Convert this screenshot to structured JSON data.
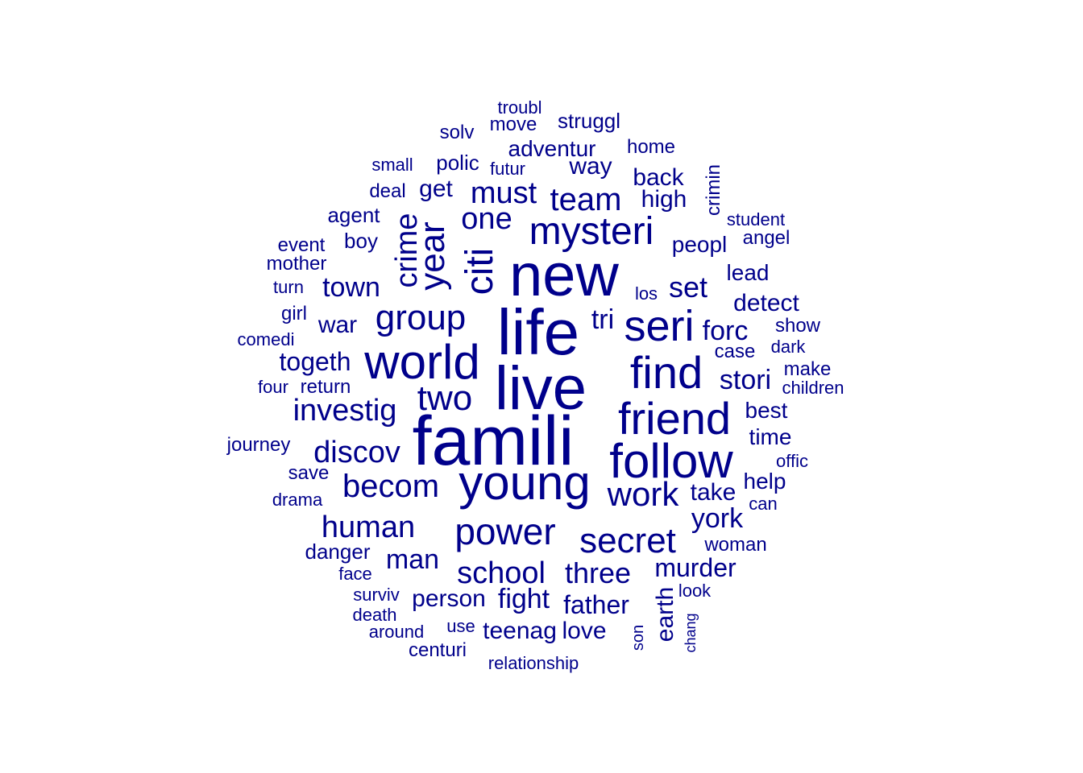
{
  "chart_data": {
    "type": "wordcloud",
    "color": "#00008B",
    "words": [
      {
        "text": "famili",
        "weight": 10
      },
      {
        "text": "new",
        "weight": 9.6
      },
      {
        "text": "live",
        "weight": 9.2
      },
      {
        "text": "life",
        "weight": 9.0
      },
      {
        "text": "young",
        "weight": 7.0
      },
      {
        "text": "follow",
        "weight": 7.0
      },
      {
        "text": "world",
        "weight": 6.8
      },
      {
        "text": "find",
        "weight": 6.4
      },
      {
        "text": "friend",
        "weight": 6.4
      },
      {
        "text": "seri",
        "weight": 6.2
      },
      {
        "text": "mysteri",
        "weight": 5.6
      },
      {
        "text": "citi",
        "weight": 5.6
      },
      {
        "text": "power",
        "weight": 5.4
      },
      {
        "text": "year",
        "weight": 5.2
      },
      {
        "text": "group",
        "weight": 5.2
      },
      {
        "text": "two",
        "weight": 5.2
      },
      {
        "text": "secret",
        "weight": 5.2
      },
      {
        "text": "crime",
        "weight": 4.8
      },
      {
        "text": "becom",
        "weight": 4.8
      },
      {
        "text": "work",
        "weight": 4.8
      },
      {
        "text": "school",
        "weight": 4.6
      },
      {
        "text": "team",
        "weight": 4.6
      },
      {
        "text": "human",
        "weight": 4.6
      },
      {
        "text": "one",
        "weight": 4.4
      },
      {
        "text": "must",
        "weight": 4.4
      },
      {
        "text": "investig",
        "weight": 4.4
      },
      {
        "text": "discov",
        "weight": 4.4
      },
      {
        "text": "set",
        "weight": 4.2
      },
      {
        "text": "three",
        "weight": 4.2
      },
      {
        "text": "town",
        "weight": 4.0
      },
      {
        "text": "man",
        "weight": 4.0
      },
      {
        "text": "fight",
        "weight": 4.0
      },
      {
        "text": "york",
        "weight": 4.0
      },
      {
        "text": "tri",
        "weight": 3.8
      },
      {
        "text": "forc",
        "weight": 3.8
      },
      {
        "text": "stori",
        "weight": 3.8
      },
      {
        "text": "father",
        "weight": 3.8
      },
      {
        "text": "togeth",
        "weight": 3.6
      },
      {
        "text": "earth",
        "weight": 3.6
      },
      {
        "text": "person",
        "weight": 3.6
      },
      {
        "text": "murder",
        "weight": 3.6
      },
      {
        "text": "teenag",
        "weight": 3.6
      },
      {
        "text": "love",
        "weight": 3.6
      },
      {
        "text": "way",
        "weight": 3.4
      },
      {
        "text": "adventur",
        "weight": 3.4
      },
      {
        "text": "war",
        "weight": 3.4
      },
      {
        "text": "detect",
        "weight": 3.4
      },
      {
        "text": "take",
        "weight": 3.4
      },
      {
        "text": "back",
        "weight": 3.2
      },
      {
        "text": "high",
        "weight": 3.2
      },
      {
        "text": "get",
        "weight": 3.2
      },
      {
        "text": "peopl",
        "weight": 3.2
      },
      {
        "text": "time",
        "weight": 3.2
      },
      {
        "text": "lead",
        "weight": 3.0
      },
      {
        "text": "best",
        "weight": 3.0
      },
      {
        "text": "help",
        "weight": 3.0
      },
      {
        "text": "struggl",
        "weight": 2.8
      },
      {
        "text": "polic",
        "weight": 2.8
      },
      {
        "text": "crimin",
        "weight": 2.8
      },
      {
        "text": "agent",
        "weight": 2.8
      },
      {
        "text": "boy",
        "weight": 2.8
      },
      {
        "text": "danger",
        "weight": 2.8
      },
      {
        "text": "make",
        "weight": 2.6
      },
      {
        "text": "case",
        "weight": 2.6
      },
      {
        "text": "show",
        "weight": 2.6
      },
      {
        "text": "home",
        "weight": 2.6
      },
      {
        "text": "angel",
        "weight": 2.6
      },
      {
        "text": "save",
        "weight": 2.6
      },
      {
        "text": "return",
        "weight": 2.6
      },
      {
        "text": "woman",
        "weight": 2.6
      },
      {
        "text": "journey",
        "weight": 2.6
      },
      {
        "text": "centuri",
        "weight": 2.6
      },
      {
        "text": "move",
        "weight": 2.4
      },
      {
        "text": "solv",
        "weight": 2.4
      },
      {
        "text": "deal",
        "weight": 2.4
      },
      {
        "text": "student",
        "weight": 2.4
      },
      {
        "text": "event",
        "weight": 2.4
      },
      {
        "text": "mother",
        "weight": 2.4
      },
      {
        "text": "girl",
        "weight": 2.4
      },
      {
        "text": "dark",
        "weight": 2.4
      },
      {
        "text": "four",
        "weight": 2.4
      },
      {
        "text": "drama",
        "weight": 2.4
      },
      {
        "text": "face",
        "weight": 2.4
      },
      {
        "text": "surviv",
        "weight": 2.4
      },
      {
        "text": "look",
        "weight": 2.4
      },
      {
        "text": "around",
        "weight": 2.4
      },
      {
        "text": "use",
        "weight": 2.4
      },
      {
        "text": "son",
        "weight": 2.4
      },
      {
        "text": "relationship",
        "weight": 2.4
      },
      {
        "text": "troubl",
        "weight": 2.2
      },
      {
        "text": "small",
        "weight": 2.2
      },
      {
        "text": "futur",
        "weight": 2.2
      },
      {
        "text": "turn",
        "weight": 2.2
      },
      {
        "text": "los",
        "weight": 2.2
      },
      {
        "text": "comedi",
        "weight": 2.2
      },
      {
        "text": "children",
        "weight": 2.2
      },
      {
        "text": "offic",
        "weight": 2.2
      },
      {
        "text": "can",
        "weight": 2.2
      },
      {
        "text": "death",
        "weight": 2.2
      },
      {
        "text": "chang",
        "weight": 2.2
      }
    ]
  }
}
